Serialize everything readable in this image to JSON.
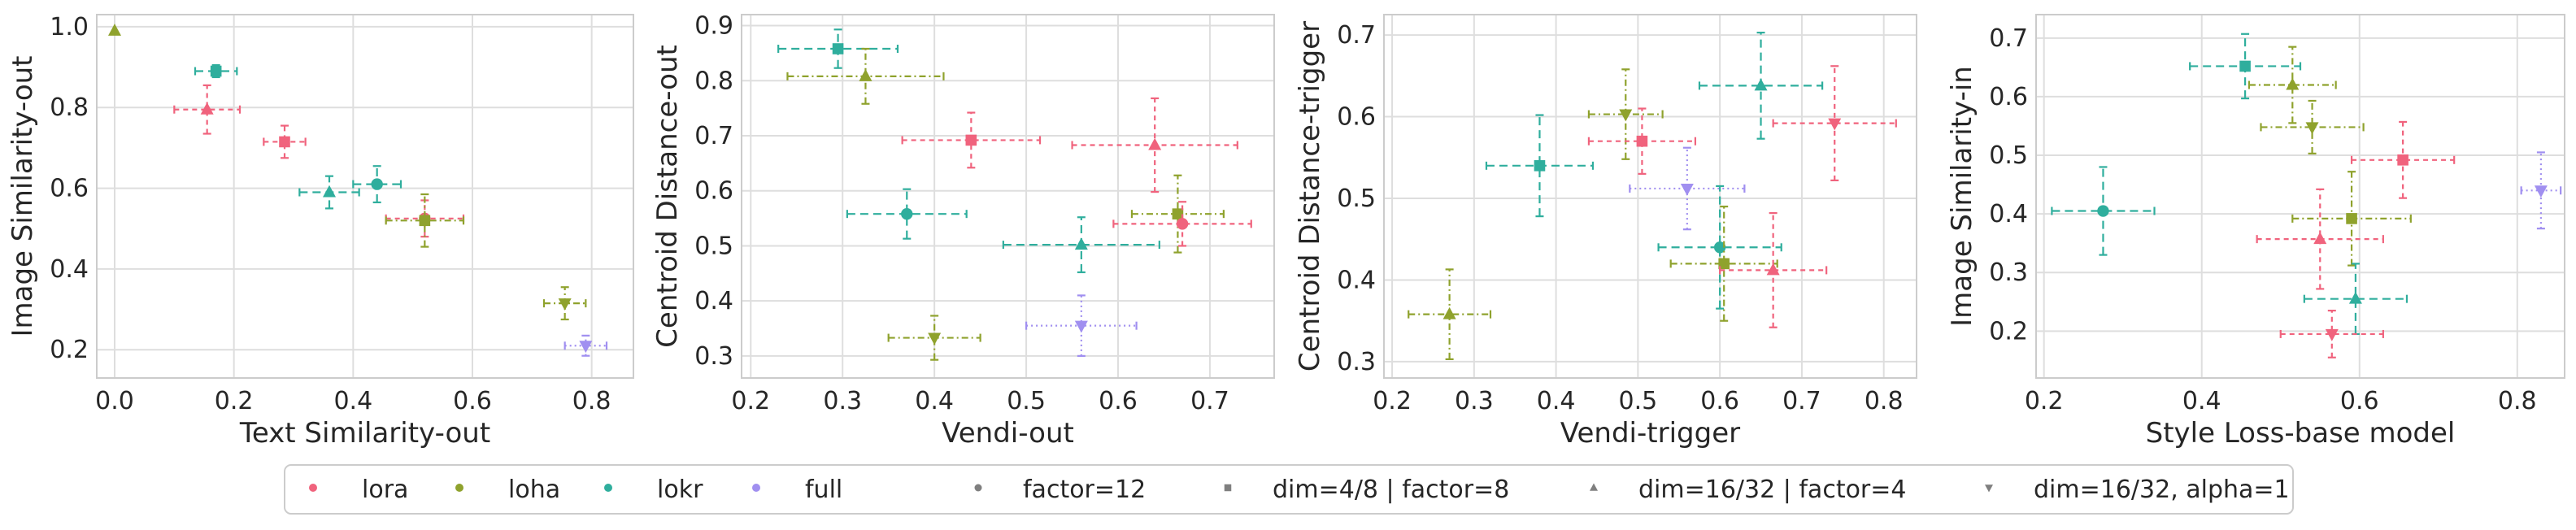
{
  "colors": {
    "lora": "#f0637d",
    "loha": "#8fa22d",
    "lokr": "#2fae9d",
    "full": "#a08ff0",
    "grid": "#dedede",
    "frame": "#cccccc",
    "neutral": "#7f7f7f"
  },
  "legend": {
    "methods": [
      {
        "key": "lora",
        "label": "lora"
      },
      {
        "key": "loha",
        "label": "loha"
      },
      {
        "key": "lokr",
        "label": "lokr"
      },
      {
        "key": "full",
        "label": "full"
      }
    ],
    "configs": [
      {
        "marker": "circle",
        "label": "factor=12"
      },
      {
        "marker": "square",
        "label": "dim=4/8 | factor=8"
      },
      {
        "marker": "triangle-up",
        "label": "dim=16/32 | factor=4"
      },
      {
        "marker": "triangle-down",
        "label": "dim=16/32, alpha=1"
      }
    ]
  },
  "chart_data": [
    {
      "type": "scatter",
      "xlabel": "Text Similarity-out",
      "ylabel": "Image Similarity-out",
      "xlim": [
        -0.03,
        0.87
      ],
      "ylim": [
        0.13,
        1.03
      ],
      "xticks": [
        "0.0",
        "0.2",
        "0.4",
        "0.6",
        "0.8"
      ],
      "xtick_values": [
        0,
        0.2,
        0.4,
        0.6,
        0.8
      ],
      "yticks": [
        "0.2",
        "0.4",
        "0.6",
        "0.8",
        "1.0"
      ],
      "ytick_values": [
        0.2,
        0.4,
        0.6,
        0.8,
        1.0
      ],
      "points": [
        {
          "method": "loha",
          "marker": "triangle-up",
          "x": 0.0,
          "y": 0.99,
          "xerr": 0,
          "yerr": 0
        },
        {
          "method": "lokr",
          "marker": "square",
          "x": 0.17,
          "y": 0.89,
          "xerr": 0.035,
          "yerr": 0.015
        },
        {
          "method": "lora",
          "marker": "triangle-up",
          "x": 0.155,
          "y": 0.795,
          "xerr": 0.055,
          "yerr": 0.06
        },
        {
          "method": "lora",
          "marker": "square",
          "x": 0.285,
          "y": 0.715,
          "xerr": 0.035,
          "yerr": 0.04
        },
        {
          "method": "lokr",
          "marker": "triangle-up",
          "x": 0.36,
          "y": 0.59,
          "xerr": 0.05,
          "yerr": 0.04
        },
        {
          "method": "lokr",
          "marker": "circle",
          "x": 0.44,
          "y": 0.61,
          "xerr": 0.04,
          "yerr": 0.045
        },
        {
          "method": "lora",
          "marker": "circle",
          "x": 0.52,
          "y": 0.525,
          "xerr": 0.065,
          "yerr": 0.045
        },
        {
          "method": "loha",
          "marker": "square",
          "x": 0.52,
          "y": 0.52,
          "xerr": 0.065,
          "yerr": 0.065
        },
        {
          "method": "loha",
          "marker": "triangle-down",
          "x": 0.755,
          "y": 0.315,
          "xerr": 0.035,
          "yerr": 0.04
        },
        {
          "method": "full",
          "marker": "triangle-down",
          "x": 0.79,
          "y": 0.21,
          "xerr": 0.035,
          "yerr": 0.025
        }
      ]
    },
    {
      "type": "scatter",
      "xlabel": "Vendi-out",
      "ylabel": "Centroid Distance-out",
      "xlim": [
        0.19,
        0.77
      ],
      "ylim": [
        0.26,
        0.92
      ],
      "xticks": [
        "0.2",
        "0.3",
        "0.4",
        "0.5",
        "0.6",
        "0.7"
      ],
      "xtick_values": [
        0.2,
        0.3,
        0.4,
        0.5,
        0.6,
        0.7
      ],
      "yticks": [
        "0.3",
        "0.4",
        "0.5",
        "0.6",
        "0.7",
        "0.8",
        "0.9"
      ],
      "ytick_values": [
        0.3,
        0.4,
        0.5,
        0.6,
        0.7,
        0.8,
        0.9
      ],
      "points": [
        {
          "method": "lokr",
          "marker": "square",
          "x": 0.295,
          "y": 0.858,
          "xerr": 0.065,
          "yerr": 0.035
        },
        {
          "method": "loha",
          "marker": "triangle-up",
          "x": 0.325,
          "y": 0.808,
          "xerr": 0.085,
          "yerr": 0.05
        },
        {
          "method": "lora",
          "marker": "square",
          "x": 0.44,
          "y": 0.692,
          "xerr": 0.075,
          "yerr": 0.05
        },
        {
          "method": "lora",
          "marker": "triangle-up",
          "x": 0.64,
          "y": 0.683,
          "xerr": 0.09,
          "yerr": 0.085
        },
        {
          "method": "lokr",
          "marker": "circle",
          "x": 0.37,
          "y": 0.558,
          "xerr": 0.065,
          "yerr": 0.045
        },
        {
          "method": "loha",
          "marker": "square",
          "x": 0.665,
          "y": 0.558,
          "xerr": 0.05,
          "yerr": 0.07
        },
        {
          "method": "lora",
          "marker": "circle",
          "x": 0.67,
          "y": 0.54,
          "xerr": 0.075,
          "yerr": 0.04
        },
        {
          "method": "lokr",
          "marker": "triangle-up",
          "x": 0.56,
          "y": 0.502,
          "xerr": 0.085,
          "yerr": 0.05
        },
        {
          "method": "full",
          "marker": "triangle-down",
          "x": 0.56,
          "y": 0.355,
          "xerr": 0.06,
          "yerr": 0.055
        },
        {
          "method": "loha",
          "marker": "triangle-down",
          "x": 0.4,
          "y": 0.333,
          "xerr": 0.05,
          "yerr": 0.04
        }
      ]
    },
    {
      "type": "scatter",
      "xlabel": "Vendi-trigger",
      "ylabel": "Centroid Distance-trigger",
      "xlim": [
        0.19,
        0.84
      ],
      "ylim": [
        0.28,
        0.725
      ],
      "xticks": [
        "0.2",
        "0.3",
        "0.4",
        "0.5",
        "0.6",
        "0.7",
        "0.8"
      ],
      "xtick_values": [
        0.2,
        0.3,
        0.4,
        0.5,
        0.6,
        0.7,
        0.8
      ],
      "yticks": [
        "0.3",
        "0.4",
        "0.5",
        "0.6",
        "0.7"
      ],
      "ytick_values": [
        0.3,
        0.4,
        0.5,
        0.6,
        0.7
      ],
      "points": [
        {
          "method": "lokr",
          "marker": "triangle-up",
          "x": 0.65,
          "y": 0.638,
          "xerr": 0.075,
          "yerr": 0.065
        },
        {
          "method": "loha",
          "marker": "triangle-down",
          "x": 0.485,
          "y": 0.603,
          "xerr": 0.045,
          "yerr": 0.055
        },
        {
          "method": "lora",
          "marker": "triangle-down",
          "x": 0.74,
          "y": 0.592,
          "xerr": 0.075,
          "yerr": 0.07
        },
        {
          "method": "lora",
          "marker": "square",
          "x": 0.505,
          "y": 0.57,
          "xerr": 0.065,
          "yerr": 0.04
        },
        {
          "method": "lokr",
          "marker": "square",
          "x": 0.38,
          "y": 0.54,
          "xerr": 0.065,
          "yerr": 0.062
        },
        {
          "method": "full",
          "marker": "triangle-down",
          "x": 0.56,
          "y": 0.512,
          "xerr": 0.07,
          "yerr": 0.05
        },
        {
          "method": "lokr",
          "marker": "circle",
          "x": 0.6,
          "y": 0.44,
          "xerr": 0.075,
          "yerr": 0.075
        },
        {
          "method": "loha",
          "marker": "square",
          "x": 0.605,
          "y": 0.42,
          "xerr": 0.065,
          "yerr": 0.07
        },
        {
          "method": "lora",
          "marker": "triangle-up",
          "x": 0.665,
          "y": 0.412,
          "xerr": 0.065,
          "yerr": 0.07
        },
        {
          "method": "loha",
          "marker": "triangle-up",
          "x": 0.27,
          "y": 0.358,
          "xerr": 0.05,
          "yerr": 0.055
        }
      ]
    },
    {
      "type": "scatter",
      "xlabel": "Style Loss-base model",
      "ylabel": "Image Similarity-in",
      "xlim": [
        0.19,
        0.86
      ],
      "ylim": [
        0.12,
        0.74
      ],
      "xticks": [
        "0.2",
        "0.4",
        "0.6",
        "0.8"
      ],
      "xtick_values": [
        0.2,
        0.4,
        0.6,
        0.8
      ],
      "yticks": [
        "0.2",
        "0.3",
        "0.4",
        "0.5",
        "0.6",
        "0.7"
      ],
      "ytick_values": [
        0.2,
        0.3,
        0.4,
        0.5,
        0.6,
        0.7
      ],
      "points": [
        {
          "method": "lokr",
          "marker": "square",
          "x": 0.455,
          "y": 0.652,
          "xerr": 0.07,
          "yerr": 0.055
        },
        {
          "method": "loha",
          "marker": "triangle-up",
          "x": 0.515,
          "y": 0.62,
          "xerr": 0.055,
          "yerr": 0.065
        },
        {
          "method": "loha",
          "marker": "triangle-down",
          "x": 0.54,
          "y": 0.548,
          "xerr": 0.065,
          "yerr": 0.045
        },
        {
          "method": "lora",
          "marker": "square",
          "x": 0.655,
          "y": 0.492,
          "xerr": 0.065,
          "yerr": 0.065
        },
        {
          "method": "full",
          "marker": "triangle-down",
          "x": 0.83,
          "y": 0.44,
          "xerr": 0.025,
          "yerr": 0.065
        },
        {
          "method": "lokr",
          "marker": "circle",
          "x": 0.275,
          "y": 0.405,
          "xerr": 0.065,
          "yerr": 0.075
        },
        {
          "method": "loha",
          "marker": "square",
          "x": 0.59,
          "y": 0.392,
          "xerr": 0.075,
          "yerr": 0.08
        },
        {
          "method": "lora",
          "marker": "triangle-up",
          "x": 0.55,
          "y": 0.357,
          "xerr": 0.08,
          "yerr": 0.085
        },
        {
          "method": "lokr",
          "marker": "triangle-up",
          "x": 0.595,
          "y": 0.255,
          "xerr": 0.065,
          "yerr": 0.06
        },
        {
          "method": "lora",
          "marker": "triangle-down",
          "x": 0.565,
          "y": 0.195,
          "xerr": 0.065,
          "yerr": 0.04
        }
      ]
    }
  ]
}
